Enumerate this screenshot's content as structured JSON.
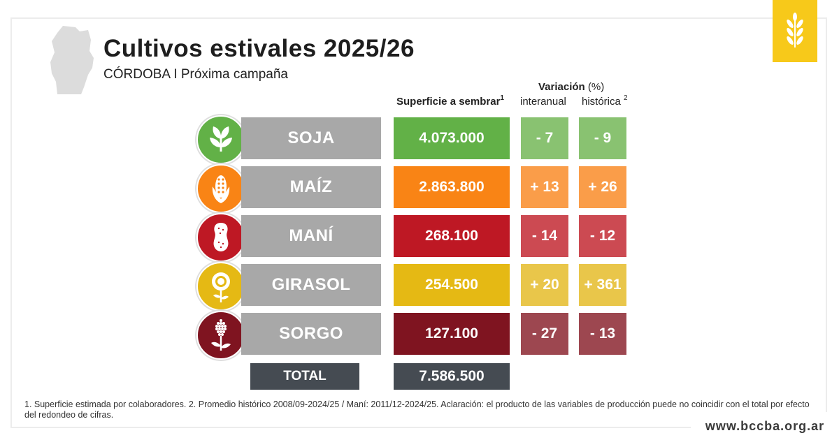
{
  "header": {
    "title": "Cultivos estivales 2025/26",
    "subtitle": "CÓRDOBA I Próxima campaña"
  },
  "columns": {
    "variation_title": "Variación",
    "variation_unit": "(%)",
    "surface": "Superficie a sembrar",
    "surface_note": "1",
    "interannual": "interanual",
    "historical": "histórica",
    "historical_note": "2"
  },
  "chart_data": {
    "type": "table",
    "title": "Cultivos estivales 2025/26",
    "subtitle": "CÓRDOBA I Próxima campaña",
    "columns": [
      "Superficie a sembrar",
      "Variación interanual (%)",
      "Variación histórica (%)"
    ],
    "rows": [
      {
        "crop": "SOJA",
        "surface": "4.073.000",
        "interannual": "- 7",
        "historical": "- 9",
        "color": "#62b147",
        "var_color": "#89c271",
        "icon": "soy-leaf-icon"
      },
      {
        "crop": "MAÍZ",
        "surface": "2.863.800",
        "interannual": "+ 13",
        "historical": "+ 26",
        "color": "#f98415",
        "var_color": "#fa9d49",
        "icon": "corn-icon"
      },
      {
        "crop": "MANÍ",
        "surface": "268.100",
        "interannual": "- 14",
        "historical": "- 12",
        "color": "#be1824",
        "var_color": "#cc4a52",
        "icon": "peanut-icon"
      },
      {
        "crop": "GIRASOL",
        "surface": "254.500",
        "interannual": "+ 20",
        "historical": "+ 361",
        "color": "#e5b914",
        "var_color": "#e9c64a",
        "icon": "sunflower-icon"
      },
      {
        "crop": "SORGO",
        "surface": "127.100",
        "interannual": "- 27",
        "historical": "- 13",
        "color": "#7f1420",
        "var_color": "#9d4750",
        "icon": "sorghum-icon"
      }
    ],
    "total": {
      "label": "TOTAL",
      "surface": "7.586.500"
    }
  },
  "footnote": "1. Superficie estimada por colaboradores. 2. Promedio histórico 2008/09-2024/25 / Maní: 2011/12-2024/25. Aclaración: el producto de las variables de producción puede no coincidir con el total por efecto del redondeo de cifras.",
  "website": "www.bccba.org.ar"
}
